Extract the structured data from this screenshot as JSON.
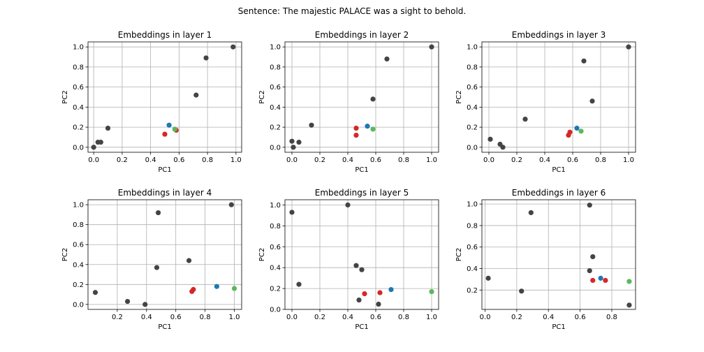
{
  "figure_title": "Sentence: The majestic PALACE was a sight to behold.",
  "colors": {
    "gray": "#444444",
    "red": "#d62728",
    "blue": "#1f77b4",
    "green": "#5cb85c",
    "grid": "#b0b0b0"
  },
  "chart_data": [
    {
      "type": "scatter",
      "title": "Embeddings in layer 1",
      "xlabel": "PC1",
      "ylabel": "PC2",
      "xlim": [
        -0.04,
        1.04
      ],
      "ylim": [
        -0.05,
        1.05
      ],
      "xticks": [
        0.0,
        0.2,
        0.4,
        0.6,
        0.8,
        1.0
      ],
      "xtick_labels": [
        "0.0",
        "0.2",
        "0.4",
        "0.6",
        "0.8",
        "1.0"
      ],
      "yticks": [
        0.0,
        0.2,
        0.4,
        0.6,
        0.8,
        1.0
      ],
      "ytick_labels": [
        "0.0",
        "0.2",
        "0.4",
        "0.6",
        "0.8",
        "1.0"
      ],
      "grid": true,
      "points": [
        {
          "x": 0.0,
          "y": 0.0,
          "color": "gray"
        },
        {
          "x": 0.03,
          "y": 0.05,
          "color": "gray"
        },
        {
          "x": 0.05,
          "y": 0.05,
          "color": "gray"
        },
        {
          "x": 0.1,
          "y": 0.19,
          "color": "gray"
        },
        {
          "x": 0.72,
          "y": 0.52,
          "color": "gray"
        },
        {
          "x": 0.79,
          "y": 0.89,
          "color": "gray"
        },
        {
          "x": 0.98,
          "y": 1.0,
          "color": "gray"
        },
        {
          "x": 0.5,
          "y": 0.13,
          "color": "red"
        },
        {
          "x": 0.58,
          "y": 0.17,
          "color": "red"
        },
        {
          "x": 0.53,
          "y": 0.22,
          "color": "blue"
        },
        {
          "x": 0.57,
          "y": 0.18,
          "color": "green"
        }
      ]
    },
    {
      "type": "scatter",
      "title": "Embeddings in layer 2",
      "xlabel": "PC1",
      "ylabel": "PC2",
      "xlim": [
        -0.05,
        1.05
      ],
      "ylim": [
        -0.05,
        1.05
      ],
      "xticks": [
        0.0,
        0.2,
        0.4,
        0.6,
        0.8,
        1.0
      ],
      "xtick_labels": [
        "0.0",
        "0.2",
        "0.4",
        "0.6",
        "0.8",
        "1.0"
      ],
      "yticks": [
        0.0,
        0.2,
        0.4,
        0.6,
        0.8,
        1.0
      ],
      "ytick_labels": [
        "0.0",
        "0.2",
        "0.4",
        "0.6",
        "0.8",
        "1.0"
      ],
      "grid": true,
      "points": [
        {
          "x": 0.0,
          "y": 0.06,
          "color": "gray"
        },
        {
          "x": 0.01,
          "y": 0.0,
          "color": "gray"
        },
        {
          "x": 0.05,
          "y": 0.05,
          "color": "gray"
        },
        {
          "x": 0.14,
          "y": 0.22,
          "color": "gray"
        },
        {
          "x": 0.58,
          "y": 0.48,
          "color": "gray"
        },
        {
          "x": 0.68,
          "y": 0.88,
          "color": "gray"
        },
        {
          "x": 1.0,
          "y": 1.0,
          "color": "gray"
        },
        {
          "x": 0.46,
          "y": 0.19,
          "color": "red"
        },
        {
          "x": 0.46,
          "y": 0.12,
          "color": "red"
        },
        {
          "x": 0.54,
          "y": 0.21,
          "color": "blue"
        },
        {
          "x": 0.58,
          "y": 0.18,
          "color": "green"
        }
      ]
    },
    {
      "type": "scatter",
      "title": "Embeddings in layer 3",
      "xlabel": "PC1",
      "ylabel": "PC2",
      "xlim": [
        -0.05,
        1.05
      ],
      "ylim": [
        -0.05,
        1.05
      ],
      "xticks": [
        0.0,
        0.2,
        0.4,
        0.6,
        0.8,
        1.0
      ],
      "xtick_labels": [
        "0.0",
        "0.2",
        "0.4",
        "0.6",
        "0.8",
        "1.0"
      ],
      "yticks": [
        0.0,
        0.2,
        0.4,
        0.6,
        0.8,
        1.0
      ],
      "ytick_labels": [
        "0.0",
        "0.2",
        "0.4",
        "0.6",
        "0.8",
        "1.0"
      ],
      "grid": true,
      "points": [
        {
          "x": 0.01,
          "y": 0.08,
          "color": "gray"
        },
        {
          "x": 0.08,
          "y": 0.03,
          "color": "gray"
        },
        {
          "x": 0.1,
          "y": 0.0,
          "color": "gray"
        },
        {
          "x": 0.26,
          "y": 0.28,
          "color": "gray"
        },
        {
          "x": 0.68,
          "y": 0.86,
          "color": "gray"
        },
        {
          "x": 0.74,
          "y": 0.46,
          "color": "gray"
        },
        {
          "x": 1.0,
          "y": 1.0,
          "color": "gray"
        },
        {
          "x": 0.57,
          "y": 0.12,
          "color": "red"
        },
        {
          "x": 0.58,
          "y": 0.15,
          "color": "red"
        },
        {
          "x": 0.63,
          "y": 0.19,
          "color": "blue"
        },
        {
          "x": 0.66,
          "y": 0.16,
          "color": "green"
        }
      ]
    },
    {
      "type": "scatter",
      "title": "Embeddings in layer 4",
      "xlabel": "PC1",
      "ylabel": "PC2",
      "xlim": [
        0.0,
        1.05
      ],
      "ylim": [
        -0.05,
        1.05
      ],
      "xticks": [
        0.2,
        0.4,
        0.6,
        0.8,
        1.0
      ],
      "xtick_labels": [
        "0.2",
        "0.4",
        "0.6",
        "0.8",
        "1.0"
      ],
      "yticks": [
        0.0,
        0.2,
        0.4,
        0.6,
        0.8,
        1.0
      ],
      "ytick_labels": [
        "0.0",
        "0.2",
        "0.4",
        "0.6",
        "0.8",
        "1.0"
      ],
      "grid": true,
      "points": [
        {
          "x": 0.05,
          "y": 0.12,
          "color": "gray"
        },
        {
          "x": 0.27,
          "y": 0.03,
          "color": "gray"
        },
        {
          "x": 0.39,
          "y": 0.0,
          "color": "gray"
        },
        {
          "x": 0.47,
          "y": 0.37,
          "color": "gray"
        },
        {
          "x": 0.48,
          "y": 0.92,
          "color": "gray"
        },
        {
          "x": 0.69,
          "y": 0.44,
          "color": "gray"
        },
        {
          "x": 0.98,
          "y": 1.0,
          "color": "gray"
        },
        {
          "x": 0.71,
          "y": 0.13,
          "color": "red"
        },
        {
          "x": 0.72,
          "y": 0.15,
          "color": "red"
        },
        {
          "x": 0.88,
          "y": 0.18,
          "color": "blue"
        },
        {
          "x": 1.0,
          "y": 0.16,
          "color": "green"
        }
      ]
    },
    {
      "type": "scatter",
      "title": "Embeddings in layer 5",
      "xlabel": "PC1",
      "ylabel": "PC2",
      "xlim": [
        -0.05,
        1.05
      ],
      "ylim": [
        0.0,
        1.05
      ],
      "xticks": [
        0.0,
        0.2,
        0.4,
        0.6,
        0.8,
        1.0
      ],
      "xtick_labels": [
        "0.0",
        "0.2",
        "0.4",
        "0.6",
        "0.8",
        "1.0"
      ],
      "yticks": [
        0.0,
        0.2,
        0.4,
        0.6,
        0.8,
        1.0
      ],
      "ytick_labels": [
        "0.0",
        "0.2",
        "0.4",
        "0.6",
        "0.8",
        "1.0"
      ],
      "grid": true,
      "points": [
        {
          "x": 0.0,
          "y": 0.93,
          "color": "gray"
        },
        {
          "x": 0.05,
          "y": 0.24,
          "color": "gray"
        },
        {
          "x": 0.4,
          "y": 1.0,
          "color": "gray"
        },
        {
          "x": 0.46,
          "y": 0.42,
          "color": "gray"
        },
        {
          "x": 0.5,
          "y": 0.38,
          "color": "gray"
        },
        {
          "x": 0.48,
          "y": 0.09,
          "color": "gray"
        },
        {
          "x": 0.62,
          "y": 0.05,
          "color": "gray"
        },
        {
          "x": 0.52,
          "y": 0.15,
          "color": "red"
        },
        {
          "x": 0.63,
          "y": 0.16,
          "color": "red"
        },
        {
          "x": 0.71,
          "y": 0.19,
          "color": "blue"
        },
        {
          "x": 1.0,
          "y": 0.17,
          "color": "green"
        }
      ]
    },
    {
      "type": "scatter",
      "title": "Embeddings in layer 6",
      "xlabel": "PC1",
      "ylabel": "PC2",
      "xlim": [
        -0.02,
        0.95
      ],
      "ylim": [
        0.02,
        1.04
      ],
      "xticks": [
        0.0,
        0.2,
        0.4,
        0.6,
        0.8
      ],
      "xtick_labels": [
        "0.0",
        "0.2",
        "0.4",
        "0.6",
        "0.8"
      ],
      "yticks": [
        0.2,
        0.4,
        0.6,
        0.8,
        1.0
      ],
      "ytick_labels": [
        "0.2",
        "0.4",
        "0.6",
        "0.8",
        "1.0"
      ],
      "grid": true,
      "points": [
        {
          "x": 0.02,
          "y": 0.31,
          "color": "gray"
        },
        {
          "x": 0.23,
          "y": 0.19,
          "color": "gray"
        },
        {
          "x": 0.29,
          "y": 0.92,
          "color": "gray"
        },
        {
          "x": 0.66,
          "y": 0.99,
          "color": "gray"
        },
        {
          "x": 0.68,
          "y": 0.51,
          "color": "gray"
        },
        {
          "x": 0.66,
          "y": 0.38,
          "color": "gray"
        },
        {
          "x": 0.91,
          "y": 0.06,
          "color": "gray"
        },
        {
          "x": 0.68,
          "y": 0.29,
          "color": "red"
        },
        {
          "x": 0.76,
          "y": 0.29,
          "color": "red"
        },
        {
          "x": 0.73,
          "y": 0.31,
          "color": "blue"
        },
        {
          "x": 0.91,
          "y": 0.28,
          "color": "green"
        }
      ]
    }
  ]
}
